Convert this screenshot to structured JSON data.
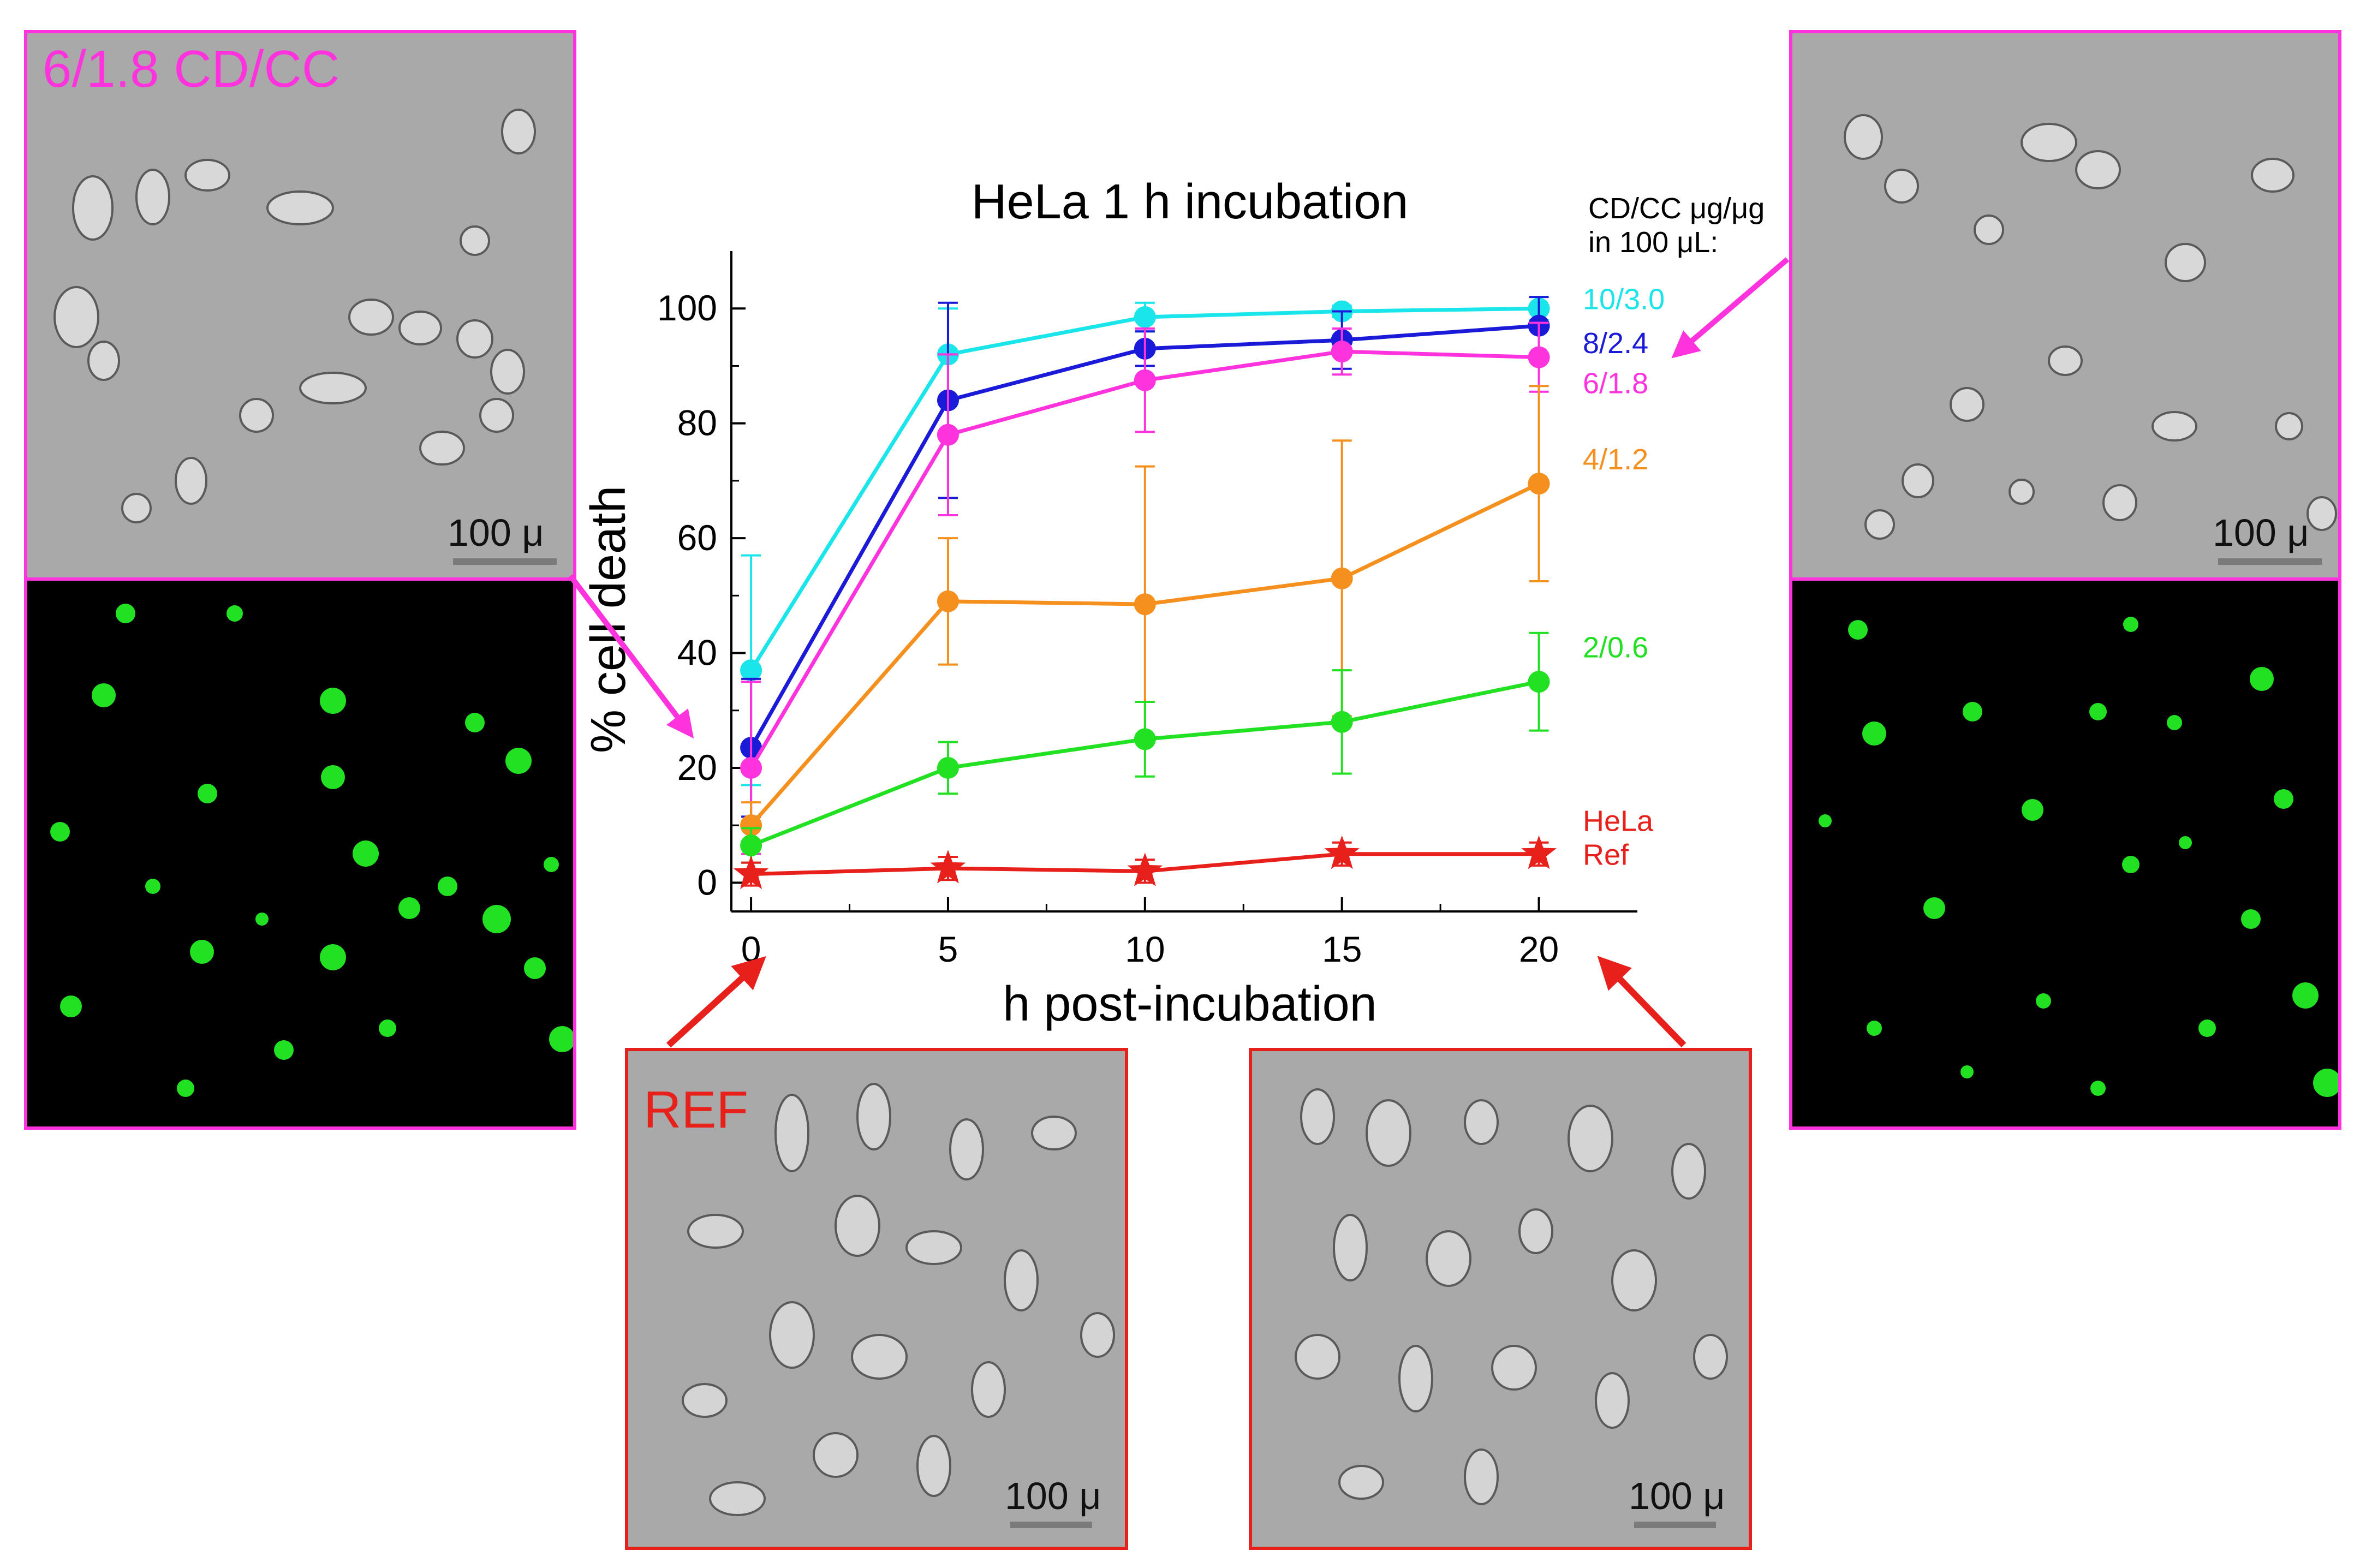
{
  "panels": {
    "top_left_label": "6/1.8 CD/CC",
    "ref_label": "REF",
    "scale_label": "100 μ"
  },
  "colors": {
    "magenta_border": "#ff33dd",
    "red_border": "#e8201c",
    "cell_fluor": "#22e022"
  },
  "chart_data": {
    "type": "line",
    "title": "HeLa 1 h incubation",
    "xlabel": "h post-incubation",
    "ylabel": "% cell death",
    "x": [
      0,
      5,
      10,
      15,
      20
    ],
    "xlim": [
      -0.5,
      22.5
    ],
    "ylim": [
      -5,
      110
    ],
    "xticks": [
      0,
      5,
      10,
      15,
      20
    ],
    "yticks": [
      0,
      20,
      40,
      60,
      80,
      100
    ],
    "legend_title": "CD/CC μg/μg\nin 100 μL:",
    "legend_title_lines": [
      "CD/CC μg/μg",
      "in 100 μL:"
    ],
    "legend_placement": "right",
    "series": [
      {
        "name": "10/3.0",
        "color": "#19e5ea",
        "marker": "circle",
        "values": [
          37,
          92,
          98.5,
          99.5,
          100
        ],
        "err": [
          20,
          8,
          2.5,
          1,
          2
        ]
      },
      {
        "name": "8/2.4",
        "color": "#1a1ad8",
        "marker": "circle",
        "values": [
          23.5,
          84,
          93,
          94.5,
          97
        ],
        "err": [
          12,
          17,
          3,
          5,
          5
        ]
      },
      {
        "name": "6/1.8",
        "color": "#ff33dd",
        "marker": "circle",
        "values": [
          20,
          78,
          87.5,
          92.5,
          91.5
        ],
        "err": [
          15,
          14,
          9,
          4,
          6
        ]
      },
      {
        "name": "4/1.2",
        "color": "#f5901e",
        "marker": "circle",
        "values": [
          10,
          49,
          48.5,
          53,
          69.5
        ],
        "err": [
          4,
          11,
          24,
          24,
          17
        ]
      },
      {
        "name": "2/0.6",
        "color": "#22e022",
        "marker": "circle",
        "values": [
          6.5,
          20,
          25,
          28,
          35
        ],
        "err": [
          3,
          4.5,
          6.5,
          9,
          8.5
        ]
      },
      {
        "name": "HeLa Ref",
        "name_lines": [
          "HeLa",
          "Ref"
        ],
        "color": "#e8201c",
        "marker": "star",
        "values": [
          1.5,
          2.5,
          2,
          5,
          5
        ],
        "err": [
          2,
          2,
          2,
          2,
          2
        ]
      }
    ]
  }
}
